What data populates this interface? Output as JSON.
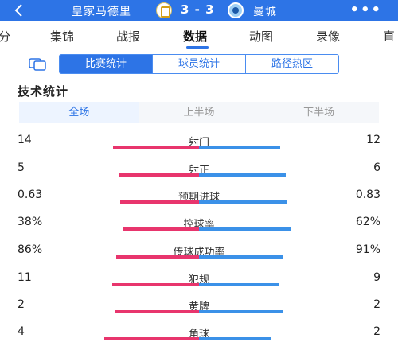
{
  "header": {
    "home_team": "皇家马德里",
    "score": "3 - 3",
    "away_team": "曼城",
    "more": "•••"
  },
  "tabs": [
    "分",
    "集锦",
    "战报",
    "数据",
    "动图",
    "录像",
    "直"
  ],
  "segments": [
    "比赛统计",
    "球员统计",
    "路径热区"
  ],
  "section_title": "技术统计",
  "periods": [
    "全场",
    "上半场",
    "下半场"
  ],
  "stats": [
    {
      "name": "射门",
      "home": "14",
      "away": "12"
    },
    {
      "name": "射正",
      "home": "5",
      "away": "6"
    },
    {
      "name": "预期进球",
      "home": "0.63",
      "away": "0.83"
    },
    {
      "name": "控球率",
      "home": "38%",
      "away": "62%"
    },
    {
      "name": "传球成功率",
      "home": "86%",
      "away": "91%"
    },
    {
      "name": "犯规",
      "home": "11",
      "away": "9"
    },
    {
      "name": "黄牌",
      "home": "2",
      "away": "2"
    },
    {
      "name": "角球",
      "home": "4",
      "away": "2"
    }
  ],
  "colors": {
    "home": "#e8356d",
    "away": "#3b91e8",
    "accent": "#2d74e6"
  }
}
